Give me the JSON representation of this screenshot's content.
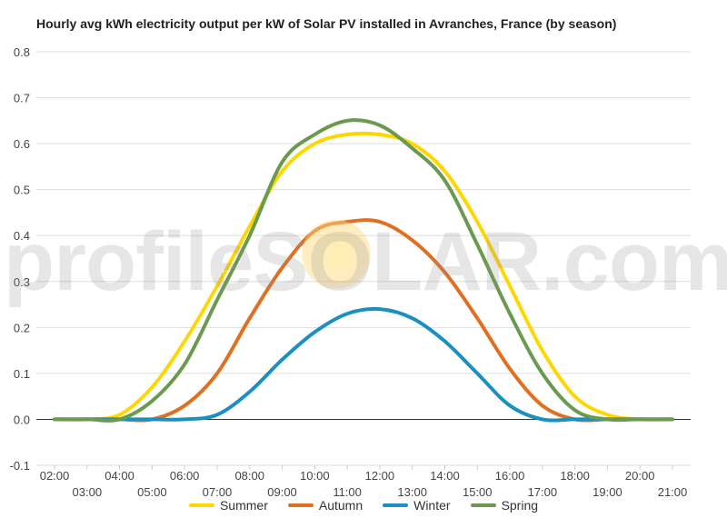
{
  "chart_data": {
    "type": "line",
    "title": "Hourly avg kWh electricity output per kW of Solar PV installed in Avranches, France (by season)",
    "xlabel": "",
    "ylabel": "",
    "ylim": [
      -0.1,
      0.8
    ],
    "yticks": [
      "-0.1",
      "0.0",
      "0.1",
      "0.2",
      "0.3",
      "0.4",
      "0.5",
      "0.6",
      "0.7",
      "0.8"
    ],
    "x": [
      "02:00",
      "03:00",
      "04:00",
      "05:00",
      "06:00",
      "07:00",
      "08:00",
      "09:00",
      "10:00",
      "11:00",
      "12:00",
      "13:00",
      "14:00",
      "15:00",
      "16:00",
      "17:00",
      "18:00",
      "19:00",
      "20:00",
      "21:00"
    ],
    "grid": true,
    "legend_position": "bottom",
    "watermark": "profileSOLAR.com",
    "series": [
      {
        "name": "Summer",
        "color": "#FFD700",
        "values": [
          0,
          0,
          0.01,
          0.07,
          0.17,
          0.29,
          0.42,
          0.54,
          0.6,
          0.62,
          0.62,
          0.6,
          0.54,
          0.43,
          0.29,
          0.15,
          0.05,
          0.01,
          0,
          0
        ]
      },
      {
        "name": "Autumn",
        "color": "#E07020",
        "values": [
          0,
          0,
          0,
          0,
          0.03,
          0.1,
          0.22,
          0.33,
          0.41,
          0.43,
          0.43,
          0.39,
          0.32,
          0.22,
          0.11,
          0.03,
          0,
          0,
          0,
          0
        ]
      },
      {
        "name": "Winter",
        "color": "#1A8FC0",
        "values": [
          0,
          0,
          0,
          0,
          0,
          0.01,
          0.06,
          0.13,
          0.19,
          0.23,
          0.24,
          0.22,
          0.17,
          0.1,
          0.03,
          0,
          0,
          0,
          0,
          0
        ]
      },
      {
        "name": "Spring",
        "color": "#6A9A50",
        "values": [
          0,
          0,
          0,
          0.04,
          0.12,
          0.26,
          0.4,
          0.56,
          0.62,
          0.65,
          0.64,
          0.59,
          0.52,
          0.38,
          0.23,
          0.1,
          0.02,
          0,
          0,
          0
        ]
      }
    ]
  }
}
